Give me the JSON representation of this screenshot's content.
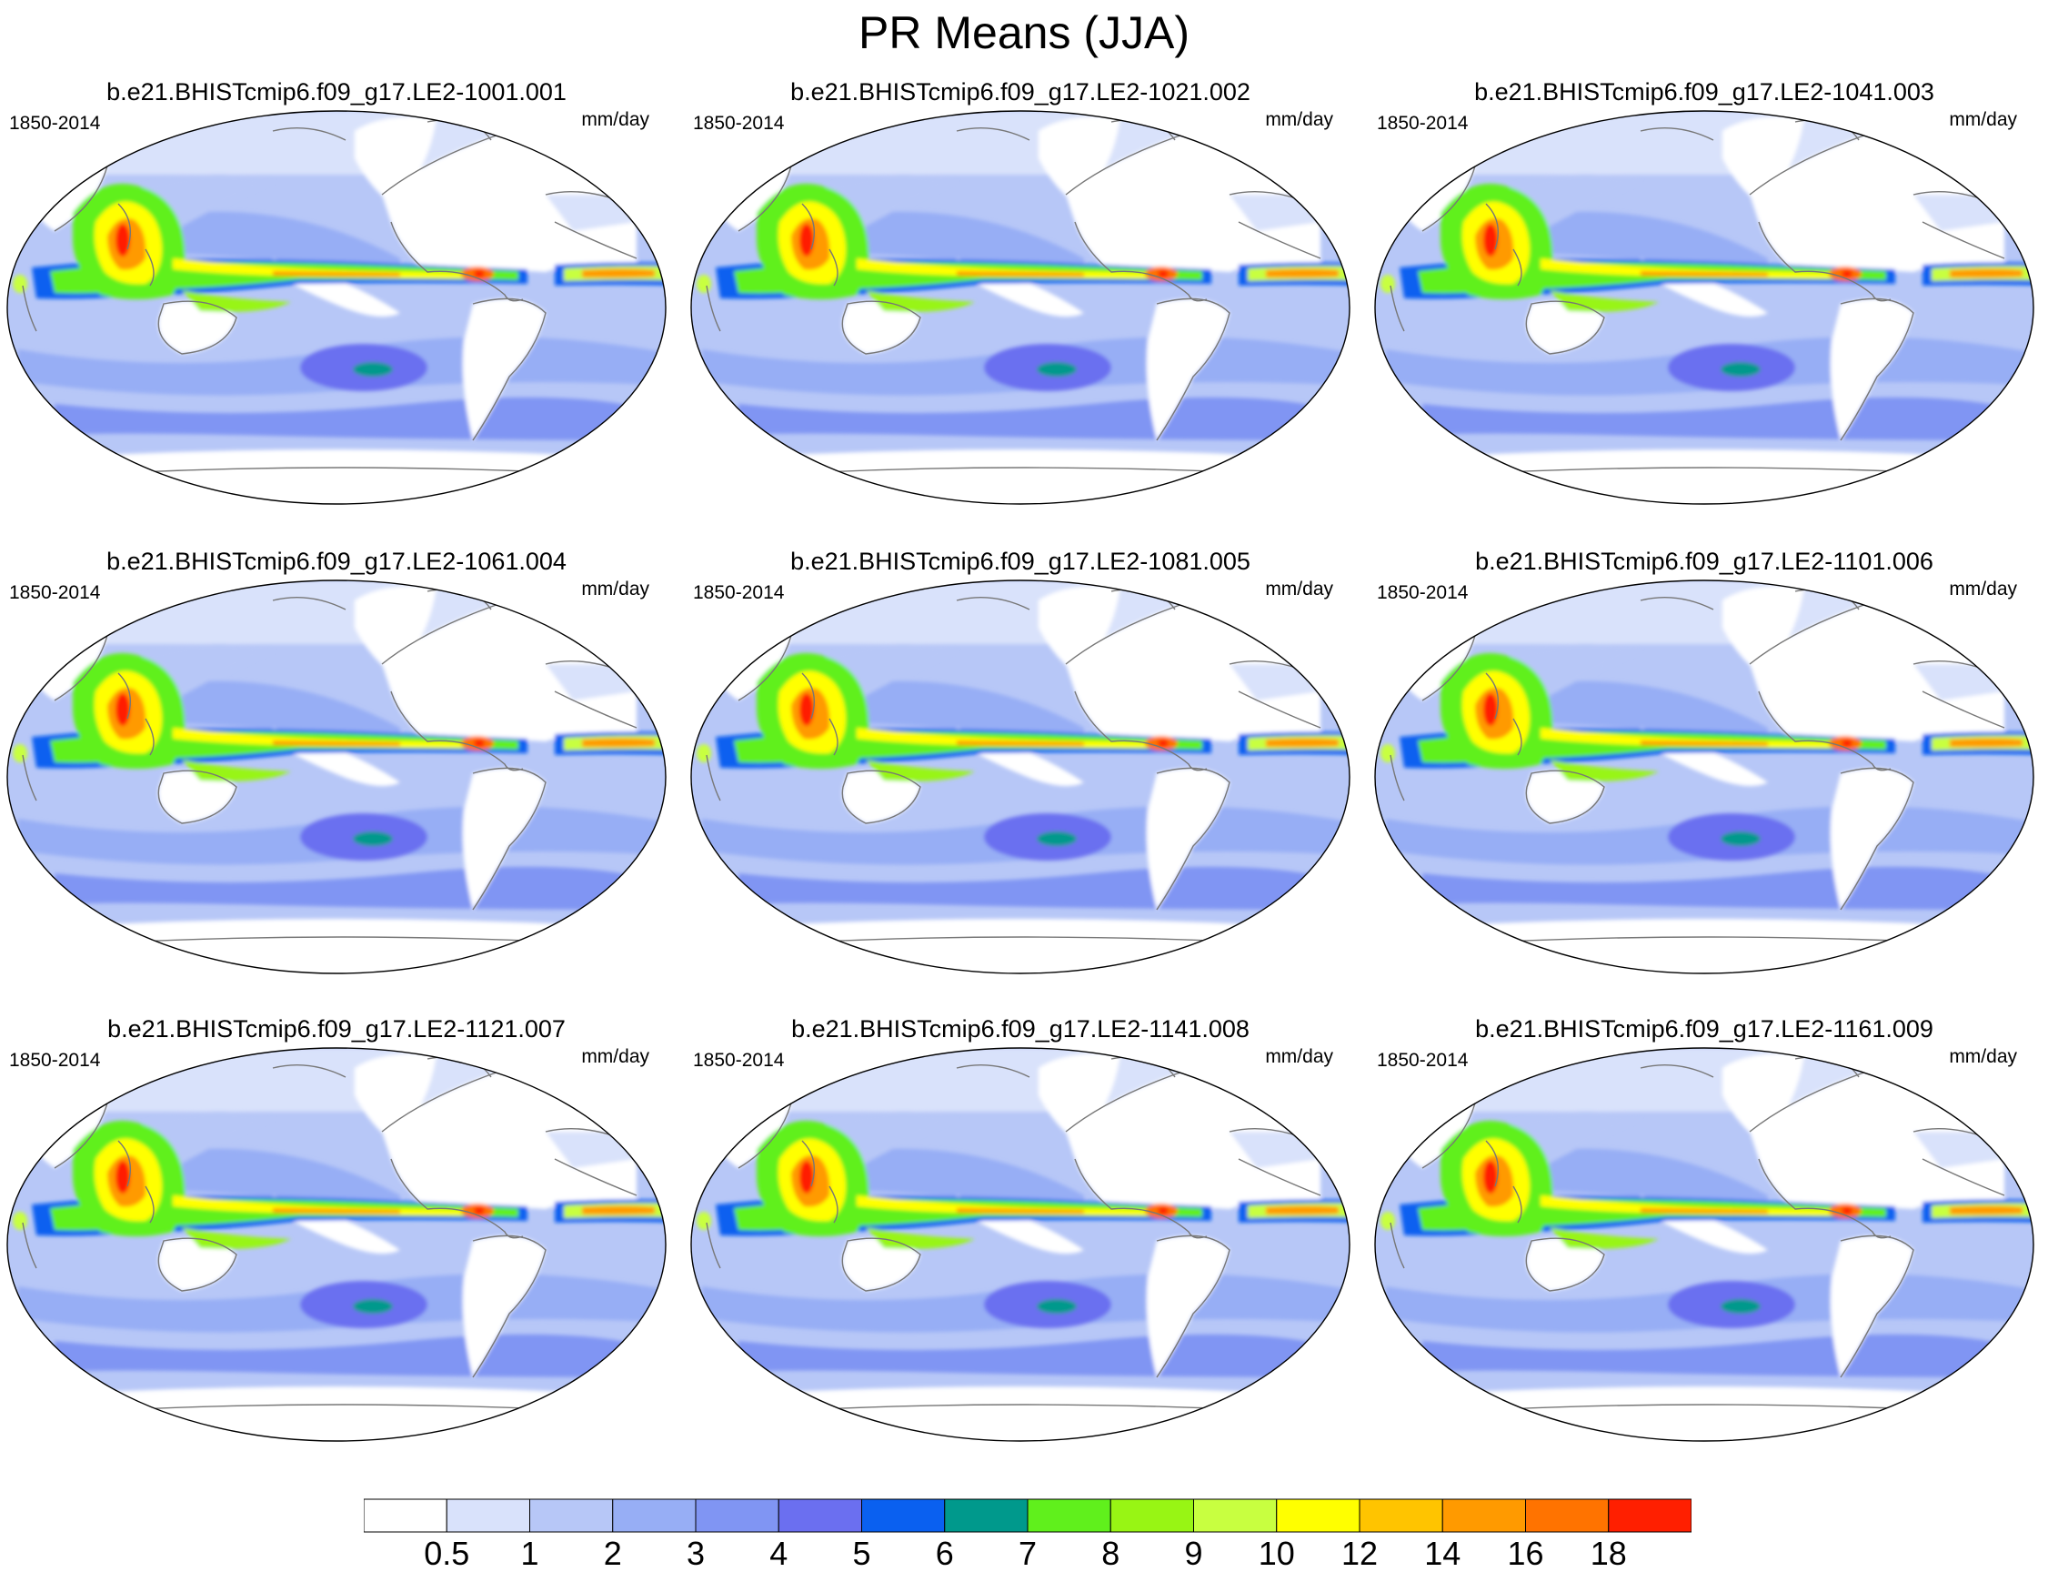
{
  "title": "PR Means (JJA)",
  "panels": [
    {
      "title": "b.e21.BHISTcmip6.f09_g17.LE2-1001.001",
      "years": "1850-2014",
      "units": "mm/day"
    },
    {
      "title": "b.e21.BHISTcmip6.f09_g17.LE2-1021.002",
      "years": "1850-2014",
      "units": "mm/day"
    },
    {
      "title": "b.e21.BHISTcmip6.f09_g17.LE2-1041.003",
      "years": "1850-2014",
      "units": "mm/day"
    },
    {
      "title": "b.e21.BHISTcmip6.f09_g17.LE2-1061.004",
      "years": "1850-2014",
      "units": "mm/day"
    },
    {
      "title": "b.e21.BHISTcmip6.f09_g17.LE2-1081.005",
      "years": "1850-2014",
      "units": "mm/day"
    },
    {
      "title": "b.e21.BHISTcmip6.f09_g17.LE2-1101.006",
      "years": "1850-2014",
      "units": "mm/day"
    },
    {
      "title": "b.e21.BHISTcmip6.f09_g17.LE2-1121.007",
      "years": "1850-2014",
      "units": "mm/day"
    },
    {
      "title": "b.e21.BHISTcmip6.f09_g17.LE2-1141.008",
      "years": "1850-2014",
      "units": "mm/day"
    },
    {
      "title": "b.e21.BHISTcmip6.f09_g17.LE2-1161.009",
      "years": "1850-2014",
      "units": "mm/day"
    }
  ],
  "colorbar": {
    "levels": [
      "0.5",
      "1",
      "2",
      "3",
      "4",
      "5",
      "6",
      "7",
      "8",
      "9",
      "10",
      "12",
      "14",
      "16",
      "18"
    ],
    "colors": [
      "#ffffff",
      "#d9e2fb",
      "#b7c7f7",
      "#97aef5",
      "#8095f3",
      "#6b6ff0",
      "#0a60f0",
      "#00998c",
      "#60f01c",
      "#98f514",
      "#c8ff40",
      "#ffff00",
      "#ffc400",
      "#ff9a00",
      "#ff7300",
      "#ff1f00"
    ]
  },
  "map": {
    "projection": "Robinson",
    "land_colors": {
      "dry": "#ffffff",
      "light": "#d9e2fb"
    },
    "ocean_base": "#b7c7f7",
    "coastline_color": "#777777"
  }
}
